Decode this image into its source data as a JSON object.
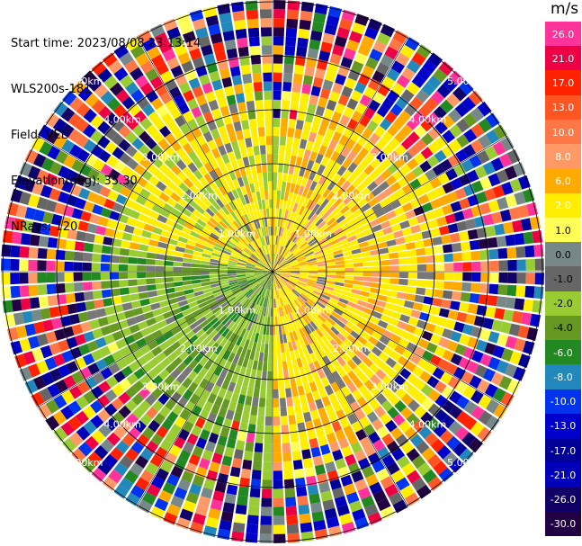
{
  "header": {
    "start_time": "Start time: 2023/08/08 23:13:14",
    "instrument": "WLS200s-181",
    "field": "Field: VEL",
    "elevation": "Elevation(deg): 35.30",
    "nrays": "NRays: 120"
  },
  "colorbar": {
    "unit": "m/s",
    "labels": [
      "26.0",
      "21.0",
      "17.0",
      "13.0",
      "10.0",
      "8.0",
      "6.0",
      "2.0",
      "1.0",
      "0.0",
      "-1.0",
      "-2.0",
      "-4.0",
      "-6.0",
      "-8.0",
      "-10.0",
      "-13.0",
      "-17.0",
      "-21.0",
      "-26.0",
      "-30.0"
    ],
    "colors": [
      "#ff3399",
      "#ee0044",
      "#ff2200",
      "#ff5522",
      "#ff7744",
      "#ff9966",
      "#ffaa00",
      "#ffee00",
      "#ffff55",
      "#778888",
      "#666666",
      "#99cc33",
      "#669922",
      "#228822",
      "#2288bb",
      "#0033ee",
      "#0000cc",
      "#000099",
      "#0000bb",
      "#110066",
      "#220044"
    ]
  },
  "rings": {
    "labels": [
      "1.00km",
      "2.00km",
      "3.00km",
      "4.00km",
      "5.00km"
    ]
  }
}
